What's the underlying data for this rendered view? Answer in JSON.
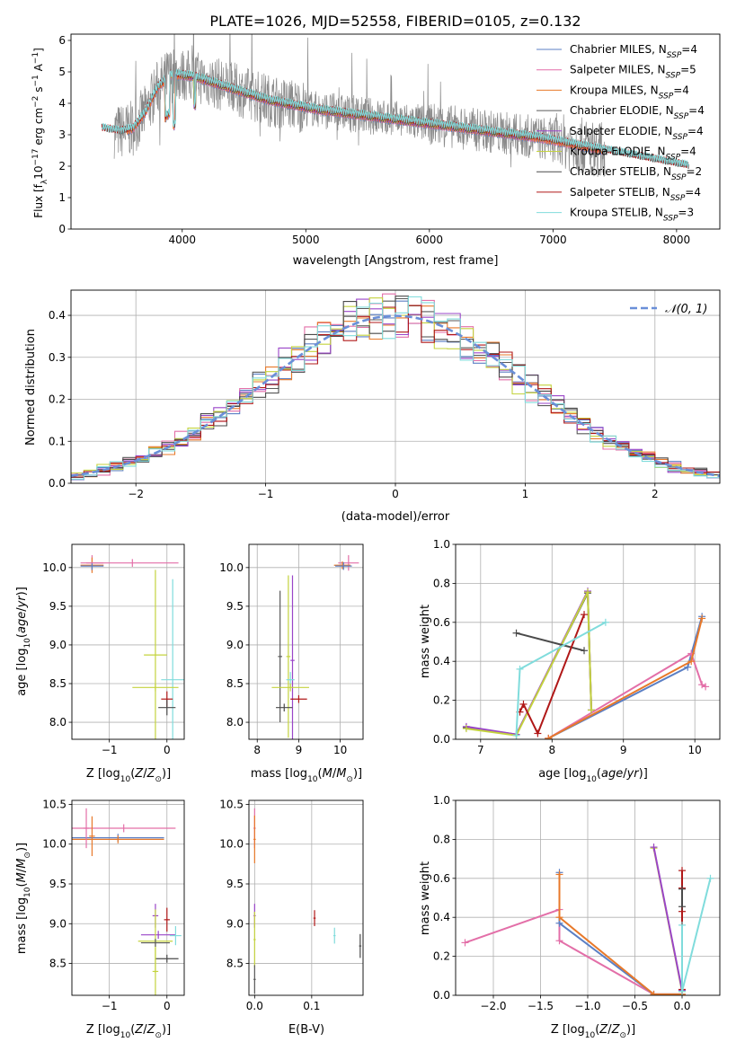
{
  "figure": {
    "title": "PLATE=1026, MJD=52558, FIBERID=0105, z=0.132"
  },
  "series_colors": {
    "chabrier_miles": "#5b7fc4",
    "salpeter_miles": "#e36fa8",
    "kroupa_miles": "#e8792a",
    "chabrier_elodie": "#5a5a5a",
    "salpeter_elodie": "#9a45c8",
    "kroupa_elodie": "#c4d33e",
    "chabrier_stelib": "#4a4a4a",
    "salpeter_stelib": "#b01818",
    "kroupa_stelib": "#80dcdc",
    "data": "#8a8a8a",
    "normal": "#6a8fd8"
  },
  "chart_data": [
    {
      "type": "line",
      "id": "spectrum",
      "xlabel": "wavelength [Angstrom, rest frame]",
      "ylabel": "Flux [f",
      "xlim": [
        3100,
        8350
      ],
      "ylim": [
        0,
        6.2
      ],
      "xticks": [
        "4000",
        "5000",
        "6000",
        "7000",
        "8000"
      ],
      "yticks": [
        "0",
        "1",
        "2",
        "3",
        "4",
        "5",
        "6"
      ],
      "grid": false,
      "legend_position": "top-right",
      "legend": [
        {
          "key": "chabrier_miles",
          "label": "Chabrier MILES, N",
          "n": "=4"
        },
        {
          "key": "salpeter_miles",
          "label": "Salpeter MILES, N",
          "n": "=5"
        },
        {
          "key": "kroupa_miles",
          "label": "Kroupa MILES, N",
          "n": "=4"
        },
        {
          "key": "chabrier_elodie",
          "label": "Chabrier ELODIE, N",
          "n": "=4"
        },
        {
          "key": "salpeter_elodie",
          "label": "Salpeter ELODIE, N",
          "n": "=4"
        },
        {
          "key": "kroupa_elodie",
          "label": "Kroupa ELODIE, N",
          "n": "=4"
        },
        {
          "key": "chabrier_stelib",
          "label": "Chabrier STELIB, N",
          "n": "=2"
        },
        {
          "key": "salpeter_stelib",
          "label": "Salpeter STELIB, N",
          "n": "=4"
        },
        {
          "key": "kroupa_stelib",
          "label": "Kroupa STELIB, N",
          "n": "=3"
        }
      ],
      "model_continuum": {
        "x": [
          3350,
          3500,
          3600,
          3700,
          3800,
          3900,
          4000,
          4100,
          4300,
          4500,
          4700,
          4900,
          5100,
          5300,
          5500,
          5700,
          5900,
          6100,
          6300,
          6500,
          6700,
          6900,
          7100,
          7300,
          7500,
          7700,
          7900,
          8100
        ],
        "y": [
          3.2,
          3.1,
          3.2,
          3.7,
          4.5,
          4.9,
          4.9,
          4.85,
          4.6,
          4.35,
          4.1,
          3.95,
          3.8,
          3.7,
          3.6,
          3.5,
          3.4,
          3.3,
          3.2,
          3.1,
          3.0,
          2.9,
          2.75,
          2.6,
          2.45,
          2.3,
          2.15,
          2.0
        ]
      }
    },
    {
      "type": "bar",
      "id": "residuals",
      "xlabel": "(data-model)/error",
      "ylabel": "Normed distribution",
      "xlim": [
        -2.5,
        2.5
      ],
      "ylim": [
        0,
        0.46
      ],
      "xticks": [
        "−2",
        "−1",
        "0",
        "1",
        "2"
      ],
      "yticks": [
        "0.0",
        "0.1",
        "0.2",
        "0.3",
        "0.4"
      ],
      "grid": true,
      "legend_position": "top-right",
      "legend_label": "𝒩(0, 1)",
      "bin_width": 0.1
    },
    {
      "type": "scatter",
      "id": "age_vs_z",
      "xlabel": "Z [log",
      "ylabel": "age  [log",
      "xlim": [
        -1.65,
        0.3
      ],
      "ylim": [
        7.78,
        10.3
      ],
      "xticks": [
        "−1",
        "0"
      ],
      "yticks": [
        "8.0",
        "8.5",
        "9.0",
        "9.5",
        "10.0"
      ],
      "grid": true,
      "points": [
        {
          "s": "salpeter_miles",
          "x": -1.3,
          "y": 10.06,
          "xerr": 0.2,
          "yerr": 0.1
        },
        {
          "s": "kroupa_miles",
          "x": -1.3,
          "y": 10.03,
          "xerr": 0.2,
          "yerr": 0.1
        },
        {
          "s": "chabrier_miles",
          "x": -1.3,
          "y": 10.02,
          "xerr": 0.2,
          "yerr": 0.05
        },
        {
          "s": "salpeter_miles",
          "x": -0.6,
          "y": 10.06,
          "xerr": 0.8,
          "yerr": 0.05
        },
        {
          "s": "kroupa_elodie",
          "x": -0.2,
          "y": 8.87,
          "xerr": 0.2,
          "yerr": 1.1
        },
        {
          "s": "kroupa_stelib",
          "x": 0.1,
          "y": 8.55,
          "xerr": 0.2,
          "yerr": 1.3
        },
        {
          "s": "salpeter_stelib",
          "x": 0.0,
          "y": 8.3,
          "xerr": 0.1,
          "yerr": 0.1
        },
        {
          "s": "chabrier_stelib",
          "x": 0.0,
          "y": 8.19,
          "xerr": 0.15,
          "yerr": 0.1
        },
        {
          "s": "kroupa_elodie",
          "x": -0.2,
          "y": 8.45,
          "xerr": 0.4,
          "yerr": 0.05
        }
      ]
    },
    {
      "type": "scatter",
      "id": "age_vs_mass",
      "xlabel": "mass [log",
      "xlim": [
        7.8,
        10.55
      ],
      "ylim": [
        7.78,
        10.3
      ],
      "xticks": [
        "8",
        "9",
        "10"
      ],
      "yticks": [
        "8.0",
        "8.5",
        "9.0",
        "9.5",
        "10.0"
      ],
      "grid": true,
      "points": [
        {
          "s": "salpeter_miles",
          "x": 10.2,
          "y": 10.06,
          "xerr": 0.25,
          "yerr": 0.1
        },
        {
          "s": "kroupa_miles",
          "x": 10.05,
          "y": 10.03,
          "xerr": 0.2,
          "yerr": 0.05
        },
        {
          "s": "chabrier_miles",
          "x": 10.08,
          "y": 10.02,
          "xerr": 0.2,
          "yerr": 0.05
        },
        {
          "s": "chabrier_elodie",
          "x": 8.55,
          "y": 8.85,
          "xerr": 0.05,
          "yerr": 0.85
        },
        {
          "s": "kroupa_elodie",
          "x": 8.75,
          "y": 8.85,
          "xerr": 0.05,
          "yerr": 1.05
        },
        {
          "s": "salpeter_elodie",
          "x": 8.85,
          "y": 8.8,
          "xerr": 0.05,
          "yerr": 1.1
        },
        {
          "s": "kroupa_stelib",
          "x": 8.8,
          "y": 8.55,
          "xerr": 0.1,
          "yerr": 0.1
        },
        {
          "s": "kroupa_elodie",
          "x": 8.8,
          "y": 8.45,
          "xerr": 0.45,
          "yerr": 0.05
        },
        {
          "s": "salpeter_stelib",
          "x": 9.0,
          "y": 8.3,
          "xerr": 0.2,
          "yerr": 0.05
        },
        {
          "s": "chabrier_stelib",
          "x": 8.65,
          "y": 8.19,
          "xerr": 0.2,
          "yerr": 0.05
        }
      ]
    },
    {
      "type": "line",
      "id": "mass_weight_vs_age",
      "xlabel": "age  [log",
      "ylabel": "mass weight",
      "xlim": [
        6.65,
        10.35
      ],
      "ylim": [
        0,
        1.0
      ],
      "xticks": [
        "7",
        "8",
        "9",
        "10"
      ],
      "yticks": [
        "0.0",
        "0.2",
        "0.4",
        "0.6",
        "0.8",
        "1.0"
      ],
      "grid": true,
      "series": [
        {
          "s": "chabrier_miles",
          "x": [
            7.95,
            9.9,
            10.1
          ],
          "y": [
            0.005,
            0.37,
            0.63
          ]
        },
        {
          "s": "salpeter_miles",
          "x": [
            7.95,
            9.95,
            10.1,
            10.15
          ],
          "y": [
            0.005,
            0.44,
            0.28,
            0.27
          ]
        },
        {
          "s": "kroupa_miles",
          "x": [
            7.95,
            9.95,
            10.1
          ],
          "y": [
            0.005,
            0.4,
            0.62
          ]
        },
        {
          "s": "chabrier_elodie",
          "x": [
            6.8,
            7.5,
            8.5,
            8.55
          ],
          "y": [
            0.06,
            0.025,
            0.75,
            0.15
          ]
        },
        {
          "s": "salpeter_elodie",
          "x": [
            6.8,
            7.5,
            8.5,
            8.55
          ],
          "y": [
            0.065,
            0.025,
            0.76,
            0.15
          ]
        },
        {
          "s": "kroupa_elodie",
          "x": [
            6.8,
            7.5,
            8.5,
            8.55
          ],
          "y": [
            0.055,
            0.02,
            0.755,
            0.15
          ]
        },
        {
          "s": "chabrier_stelib",
          "x": [
            7.5,
            8.45
          ],
          "y": [
            0.545,
            0.455
          ]
        },
        {
          "s": "salpeter_stelib",
          "x": [
            7.55,
            7.6,
            7.8,
            8.45
          ],
          "y": [
            0.14,
            0.18,
            0.03,
            0.64
          ]
        },
        {
          "s": "kroupa_stelib",
          "x": [
            7.5,
            7.55,
            8.75
          ],
          "y": [
            0.02,
            0.36,
            0.6
          ]
        }
      ]
    },
    {
      "type": "scatter",
      "id": "mass_vs_z",
      "xlabel": "Z [log",
      "ylabel": "mass [log",
      "xlim": [
        -1.65,
        0.3
      ],
      "ylim": [
        8.1,
        10.55
      ],
      "xticks": [
        "−1",
        "0"
      ],
      "yticks": [
        "8.5",
        "9.0",
        "9.5",
        "10.0",
        "10.5"
      ],
      "grid": true,
      "points": [
        {
          "s": "salpeter_miles",
          "x": -0.75,
          "y": 10.2,
          "xerr": 0.9,
          "yerr": 0.05
        },
        {
          "s": "chabrier_miles",
          "x": -0.85,
          "y": 10.08,
          "xerr": 0.8,
          "yerr": 0.05
        },
        {
          "s": "kroupa_miles",
          "x": -0.85,
          "y": 10.06,
          "xerr": 0.8,
          "yerr": 0.05
        },
        {
          "s": "salpeter_miles",
          "x": -1.4,
          "y": 10.2,
          "xerr": 0.05,
          "yerr": 0.25
        },
        {
          "s": "kroupa_miles",
          "x": -1.3,
          "y": 10.1,
          "xerr": 0.05,
          "yerr": 0.25
        },
        {
          "s": "salpeter_elodie",
          "x": -0.2,
          "y": 9.1,
          "xerr": 0.05,
          "yerr": 0.15
        },
        {
          "s": "salpeter_stelib",
          "x": 0.0,
          "y": 9.05,
          "xerr": 0.05,
          "yerr": 0.15
        },
        {
          "s": "salpeter_elodie",
          "x": -0.15,
          "y": 8.86,
          "xerr": 0.3,
          "yerr": 0.05
        },
        {
          "s": "kroupa_stelib",
          "x": 0.15,
          "y": 8.85,
          "xerr": 0.1,
          "yerr": 0.12
        },
        {
          "s": "kroupa_elodie",
          "x": -0.2,
          "y": 8.78,
          "xerr": 0.3,
          "yerr": 0.4
        },
        {
          "s": "chabrier_elodie",
          "x": -0.2,
          "y": 8.76,
          "xerr": 0.25,
          "yerr": 0.05
        },
        {
          "s": "chabrier_stelib",
          "x": 0.0,
          "y": 8.56,
          "xerr": 0.2,
          "yerr": 0.05
        },
        {
          "s": "kroupa_elodie",
          "x": -0.2,
          "y": 8.4,
          "xerr": 0.05,
          "yerr": 0.3
        }
      ]
    },
    {
      "type": "scatter",
      "id": "mass_vs_ebv",
      "xlabel": "E(B-V)",
      "xlim": [
        -0.01,
        0.19
      ],
      "ylim": [
        8.1,
        10.55
      ],
      "xticks": [
        "0.0",
        "0.1"
      ],
      "yticks": [
        "8.5",
        "9.0",
        "9.5",
        "10.0",
        "10.5"
      ],
      "grid": true,
      "points": [
        {
          "s": "salpeter_miles",
          "x": 0.0,
          "y": 10.2,
          "xerr": 0.002,
          "yerr": 0.25
        },
        {
          "s": "kroupa_miles",
          "x": 0.0,
          "y": 10.06,
          "xerr": 0.002,
          "yerr": 0.3
        },
        {
          "s": "salpeter_elodie",
          "x": 0.0,
          "y": 9.1,
          "xerr": 0.002,
          "yerr": 0.15
        },
        {
          "s": "kroupa_elodie",
          "x": 0.0,
          "y": 8.8,
          "xerr": 0.002,
          "yerr": 0.35
        },
        {
          "s": "chabrier_elodie",
          "x": 0.0,
          "y": 8.3,
          "xerr": 0.002,
          "yerr": 0.18
        },
        {
          "s": "salpeter_stelib",
          "x": 0.105,
          "y": 9.07,
          "xerr": 0.002,
          "yerr": 0.1
        },
        {
          "s": "kroupa_stelib",
          "x": 0.14,
          "y": 8.85,
          "xerr": 0.002,
          "yerr": 0.1
        },
        {
          "s": "chabrier_stelib",
          "x": 0.185,
          "y": 8.72,
          "xerr": 0.002,
          "yerr": 0.15
        }
      ]
    },
    {
      "type": "line",
      "id": "mass_weight_vs_z",
      "xlabel": "Z [log",
      "ylabel": "mass weight",
      "xlim": [
        -2.4,
        0.4
      ],
      "ylim": [
        0,
        1.0
      ],
      "xticks": [
        "−2.0",
        "−1.5",
        "−1.0",
        "−0.5",
        "0.0"
      ],
      "yticks": [
        "0.0",
        "0.2",
        "0.4",
        "0.6",
        "0.8",
        "1.0"
      ],
      "grid": true,
      "series": [
        {
          "s": "salpeter_miles",
          "x": [
            -2.3,
            -1.3,
            -1.3,
            -0.3,
            0.0
          ],
          "y": [
            0.27,
            0.44,
            0.28,
            0.005,
            0.005
          ]
        },
        {
          "s": "chabrier_miles",
          "x": [
            -1.3,
            -1.3,
            -0.3,
            0.0
          ],
          "y": [
            0.63,
            0.37,
            0.005,
            0.005
          ]
        },
        {
          "s": "kroupa_miles",
          "x": [
            -1.3,
            -1.3,
            -0.3,
            0.0
          ],
          "y": [
            0.62,
            0.4,
            0.005,
            0.005
          ]
        },
        {
          "s": "kroupa_elodie",
          "x": [
            -0.3,
            0.0
          ],
          "y": [
            0.755,
            0.02
          ]
        },
        {
          "s": "salpeter_elodie",
          "x": [
            -0.3,
            0.0
          ],
          "y": [
            0.76,
            0.025
          ]
        },
        {
          "s": "salpeter_stelib",
          "x": [
            0.0,
            0.0,
            0.0,
            0.0
          ],
          "y": [
            0.64,
            0.55,
            0.43,
            0.03
          ]
        },
        {
          "s": "chabrier_stelib",
          "x": [
            0.0,
            0.0
          ],
          "y": [
            0.545,
            0.455
          ]
        },
        {
          "s": "kroupa_stelib",
          "x": [
            0.0,
            0.0,
            0.3
          ],
          "y": [
            0.36,
            0.02,
            0.6
          ]
        }
      ]
    }
  ]
}
